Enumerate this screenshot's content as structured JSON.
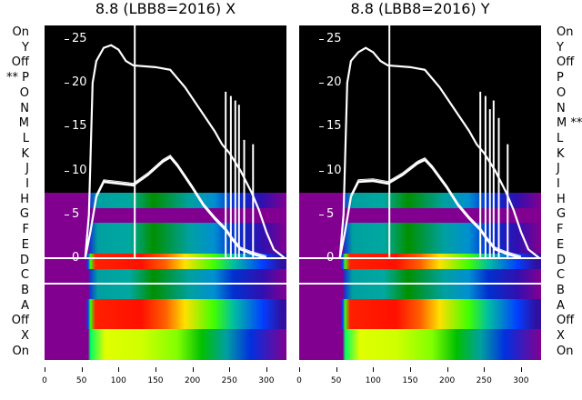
{
  "chart_data": [
    {
      "type": "line",
      "title": "8.8 (LBB8=2016) X",
      "row_labels": [
        "On",
        "Y",
        "Off",
        "** P",
        "O",
        "N",
        "M",
        "L",
        "K",
        "J",
        "I",
        "H",
        "G",
        "F",
        "E",
        "D",
        "C",
        "B",
        "A",
        "Off",
        "X",
        "On"
      ],
      "xlim": [
        0,
        327
      ],
      "ylim": [
        0,
        26.5
      ],
      "xticks": [
        "0",
        "50",
        "100",
        "150",
        "200",
        "250",
        "300"
      ],
      "yticks": [
        "0",
        "5",
        "10",
        "15",
        "20",
        "25"
      ],
      "series": [
        {
          "name": "upper",
          "x": [
            55,
            60,
            65,
            70,
            80,
            90,
            100,
            110,
            120,
            150,
            170,
            190,
            210,
            230,
            240,
            250,
            265,
            280,
            290,
            300,
            310,
            325
          ],
          "y": [
            0,
            5,
            20,
            22.5,
            24,
            24.3,
            23.8,
            22.5,
            22,
            21.8,
            21.5,
            19.5,
            17,
            14.5,
            13,
            12,
            10,
            7.5,
            5.5,
            3,
            1,
            0
          ]
        },
        {
          "name": "lower",
          "x": [
            55,
            62,
            70,
            80,
            100,
            120,
            140,
            160,
            170,
            180,
            200,
            215,
            230,
            245,
            255,
            265,
            280,
            300
          ],
          "y": [
            0,
            3,
            7,
            8.7,
            8.5,
            8.3,
            9.5,
            11,
            11.5,
            10.5,
            8,
            6,
            4.5,
            3.2,
            2,
            1,
            0.5,
            0
          ]
        }
      ],
      "spikes": [
        {
          "x": 122,
          "y": 27
        },
        {
          "x": 245,
          "y": 19
        },
        {
          "x": 252,
          "y": 18.5
        },
        {
          "x": 258,
          "y": 18
        },
        {
          "x": 263,
          "y": 17.5
        },
        {
          "x": 270,
          "y": 13.5
        },
        {
          "x": 282,
          "y": 13
        }
      ]
    },
    {
      "type": "line",
      "title": "8.8 (LBB8=2016) Y",
      "row_labels": [
        "On",
        "Y",
        "Off",
        "P",
        "O",
        "N",
        "M **",
        "L",
        "K",
        "J",
        "I",
        "H",
        "G",
        "F",
        "E",
        "D",
        "C",
        "B",
        "A",
        "Off",
        "X",
        "On"
      ],
      "xlim": [
        0,
        327
      ],
      "ylim": [
        0,
        26.5
      ],
      "xticks": [
        "0",
        "50",
        "100",
        "150",
        "200",
        "250",
        "300"
      ],
      "yticks": [
        "0",
        "5",
        "10",
        "15",
        "20",
        "25"
      ],
      "series": [
        {
          "name": "upper",
          "x": [
            55,
            60,
            65,
            70,
            80,
            90,
            100,
            110,
            120,
            150,
            170,
            190,
            210,
            230,
            240,
            250,
            265,
            280,
            290,
            300,
            310,
            325
          ],
          "y": [
            0,
            5,
            20,
            22.5,
            23.5,
            24,
            23.5,
            22.5,
            22,
            21.8,
            21.5,
            19.5,
            17,
            14.5,
            13,
            12,
            10,
            7.5,
            5.5,
            3,
            1,
            0
          ]
        },
        {
          "name": "lower",
          "x": [
            55,
            62,
            70,
            80,
            100,
            120,
            140,
            160,
            170,
            180,
            200,
            215,
            230,
            245,
            255,
            265,
            280,
            300
          ],
          "y": [
            0,
            3,
            7,
            8.7,
            8.8,
            8.5,
            9.5,
            10.8,
            11.2,
            10.3,
            8,
            6,
            4.5,
            3.2,
            2,
            1,
            0.5,
            0
          ]
        }
      ],
      "spikes": [
        {
          "x": 122,
          "y": 27
        },
        {
          "x": 245,
          "y": 19
        },
        {
          "x": 252,
          "y": 18.5
        },
        {
          "x": 258,
          "y": 17
        },
        {
          "x": 263,
          "y": 18
        },
        {
          "x": 270,
          "y": 16
        },
        {
          "x": 282,
          "y": 13
        }
      ]
    }
  ]
}
